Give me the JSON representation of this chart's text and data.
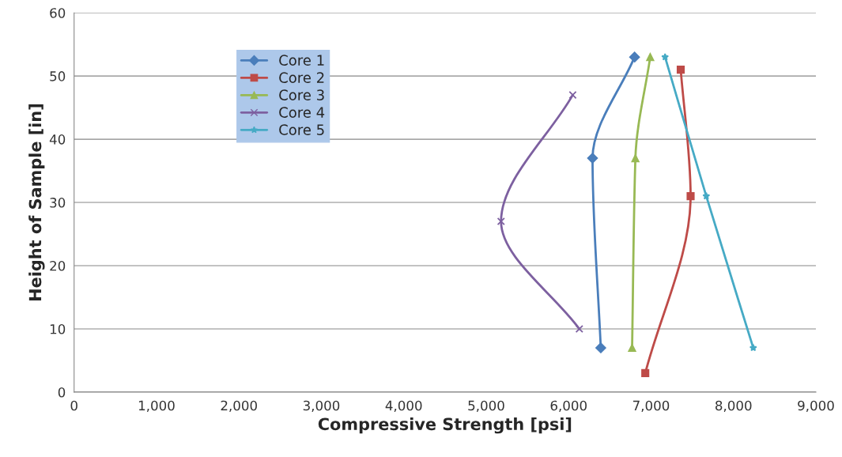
{
  "chart_data": {
    "type": "line",
    "xlabel": "Compressive Strength [psi]",
    "ylabel": "Height of Sample [in]",
    "xlim": [
      0,
      9000
    ],
    "xticks": [
      {
        "value": 0,
        "label": "0"
      },
      {
        "value": 1000,
        "label": "1,000"
      },
      {
        "value": 2000,
        "label": "2,000"
      },
      {
        "value": 3000,
        "label": "3,000"
      },
      {
        "value": 4000,
        "label": "4,000"
      },
      {
        "value": 5000,
        "label": "5,000"
      },
      {
        "value": 6000,
        "label": "6,000"
      },
      {
        "value": 7000,
        "label": "7,000"
      },
      {
        "value": 8000,
        "label": "8,000"
      },
      {
        "value": 9000,
        "label": "9,000"
      }
    ],
    "ylim": [
      0,
      60
    ],
    "yticks": [
      0,
      10,
      20,
      30,
      40,
      50,
      60
    ],
    "grid": "y",
    "legend": "top left",
    "series": [
      {
        "name": "Core 1",
        "color": "#4a7ebb",
        "marker": "diamond",
        "x": [
          6800,
          6290,
          6390
        ],
        "values": [
          53,
          37,
          7
        ]
      },
      {
        "name": "Core 2",
        "color": "#be4b48",
        "marker": "square",
        "x": [
          7360,
          7480,
          6930
        ],
        "values": [
          51,
          31,
          3
        ]
      },
      {
        "name": "Core 3",
        "color": "#98b954",
        "marker": "triangle",
        "x": [
          6990,
          6810,
          6770
        ],
        "values": [
          53,
          37,
          7
        ]
      },
      {
        "name": "Core 4",
        "color": "#7d60a0",
        "marker": "cross",
        "x": [
          6050,
          5180,
          6130
        ],
        "values": [
          47,
          27,
          10
        ]
      },
      {
        "name": "Core 5",
        "color": "#46aac5",
        "marker": "star",
        "x": [
          7170,
          7670,
          8240
        ],
        "values": [
          53,
          31,
          7
        ]
      }
    ]
  }
}
